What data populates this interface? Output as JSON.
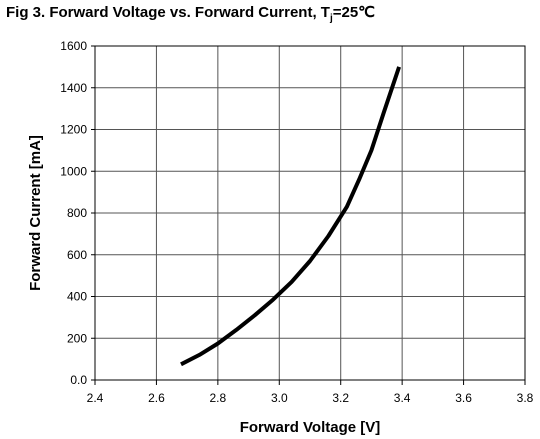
{
  "title": {
    "prefix": "Fig 3. Forward Voltage vs. Forward Current, T",
    "subscript": "j",
    "suffix": "=25℃"
  },
  "chart_data": {
    "type": "line",
    "xlabel": "Forward Voltage [V]",
    "ylabel": "Forward Current [mA]",
    "xlim": [
      2.4,
      3.8
    ],
    "ylim": [
      0,
      1600
    ],
    "x_ticks": [
      2.4,
      2.6,
      2.8,
      3.0,
      3.2,
      3.4,
      3.6,
      3.8
    ],
    "y_ticks": [
      0,
      200,
      400,
      600,
      800,
      1000,
      1200,
      1400,
      1600
    ],
    "x_tick_labels": [
      "2.4",
      "2.6",
      "2.8",
      "3.0",
      "3.2",
      "3.4",
      "3.6",
      "3.8"
    ],
    "y_tick_labels": [
      "0.0",
      "200",
      "400",
      "600",
      "800",
      "1000",
      "1200",
      "1400",
      "1600"
    ],
    "grid": true,
    "series": [
      {
        "color": "#000000",
        "x": [
          2.68,
          2.74,
          2.8,
          2.86,
          2.92,
          2.98,
          3.04,
          3.1,
          3.16,
          3.22,
          3.26,
          3.3,
          3.34,
          3.39
        ],
        "y": [
          75,
          120,
          175,
          240,
          310,
          385,
          470,
          570,
          690,
          830,
          960,
          1100,
          1280,
          1500
        ]
      }
    ]
  }
}
